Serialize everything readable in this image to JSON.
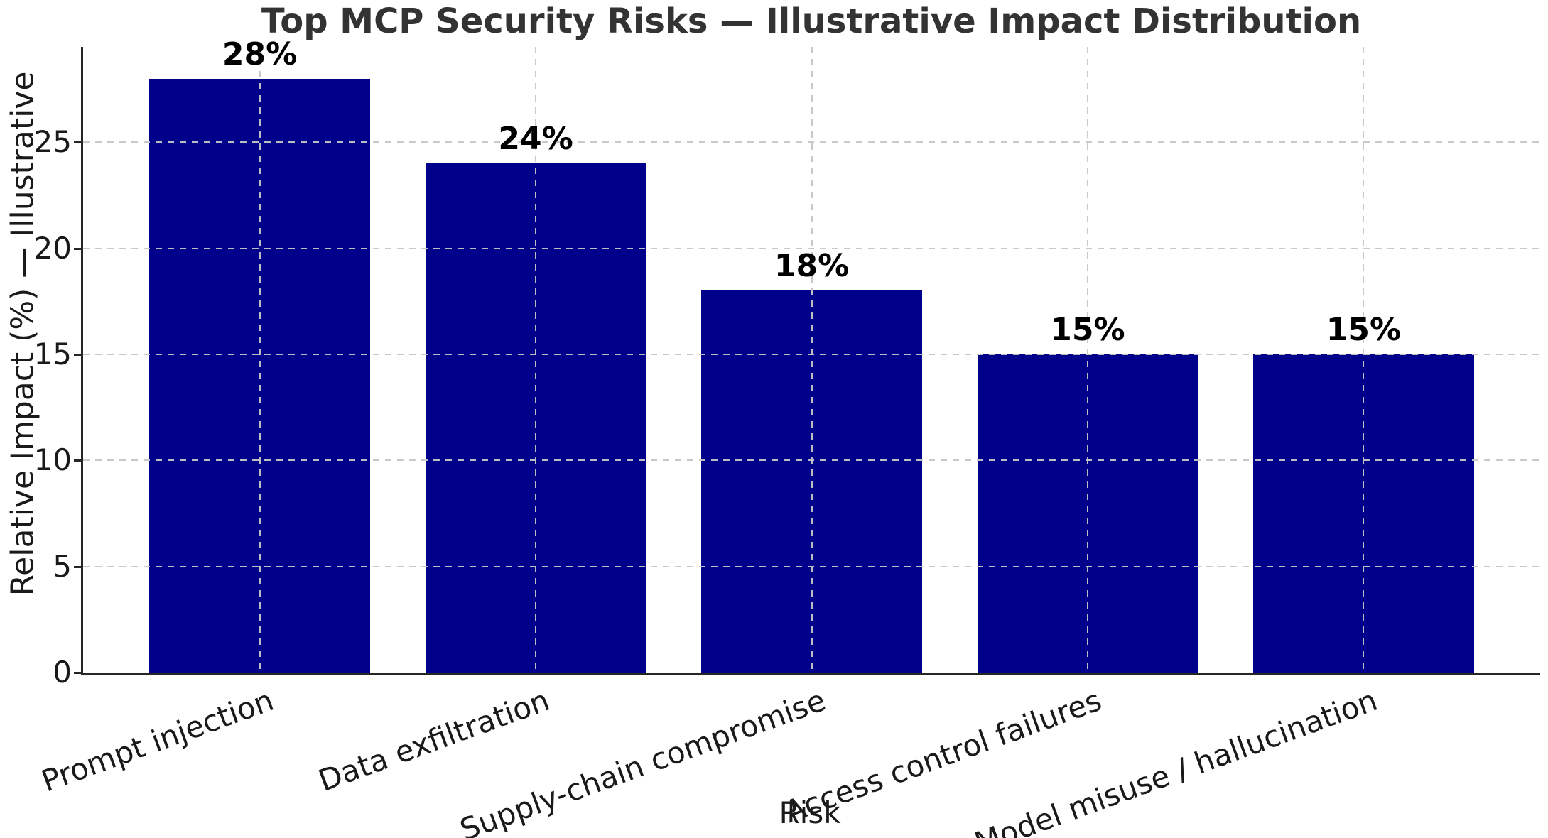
{
  "chart_data": {
    "type": "bar",
    "title": "Top MCP Security Risks — Illustrative Impact Distribution",
    "xlabel": "Risk",
    "ylabel": "Relative Impact (%) — Illustrative",
    "categories": [
      "Prompt injection",
      "Data exfiltration",
      "Supply-chain compromise",
      "Access control failures",
      "Model misuse / hallucination"
    ],
    "values": [
      28,
      24,
      18,
      15,
      15
    ],
    "value_labels": [
      "28%",
      "24%",
      "18%",
      "15%",
      "15%"
    ],
    "yticks": [
      0,
      5,
      10,
      15,
      20,
      25
    ],
    "ylim": [
      0,
      29.5
    ],
    "grid": "dashed",
    "legend": "none",
    "colors": {
      "bar": "#00008B",
      "grid": "#c6c6c6",
      "title": "#333333",
      "text": "#1a1a1a",
      "spine": "#262626",
      "value_label": "#000000",
      "background": "#ffffff"
    }
  }
}
